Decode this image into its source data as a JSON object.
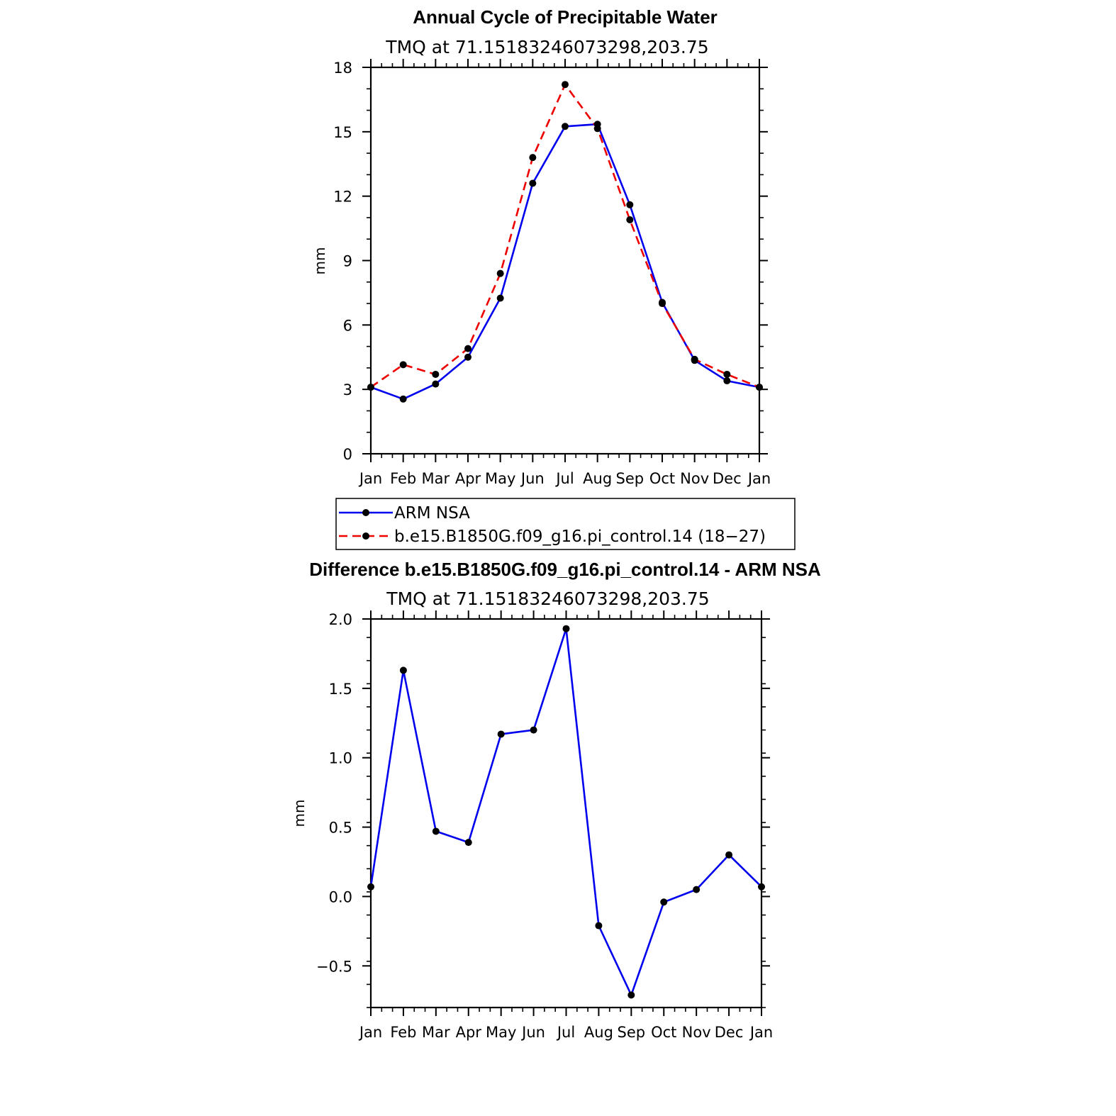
{
  "chart_data": [
    {
      "type": "line",
      "title": "Annual Cycle of Precipitable Water",
      "subtitle": "TMQ  at  71.15183246073298,203.75",
      "xlabel": "",
      "ylabel": "mm",
      "categories": [
        "Jan",
        "Feb",
        "Mar",
        "Apr",
        "May",
        "Jun",
        "Jul",
        "Aug",
        "Sep",
        "Oct",
        "Nov",
        "Dec",
        "Jan"
      ],
      "ylim": [
        0,
        18
      ],
      "yticks": [
        0,
        3,
        6,
        9,
        12,
        15,
        18
      ],
      "ytick_labels": [
        "0",
        "3",
        "6",
        "9",
        "12",
        "15",
        "18"
      ],
      "series": [
        {
          "name": "ARM  NSA",
          "color": "#0000ee",
          "dash": "solid",
          "values": [
            3.1,
            2.55,
            3.25,
            4.5,
            7.25,
            12.6,
            15.25,
            15.35,
            11.6,
            7.05,
            4.35,
            3.4,
            3.1
          ]
        },
        {
          "name": "b.e15.B1850G.f09_g16.pi_control.14  (18−27)",
          "color": "#ee0000",
          "dash": "dashed",
          "values": [
            3.1,
            4.15,
            3.7,
            4.9,
            8.4,
            13.8,
            17.2,
            15.15,
            10.9,
            7.0,
            4.4,
            3.7,
            3.1
          ]
        }
      ],
      "legend": "below"
    },
    {
      "type": "line",
      "title": "Difference b.e15.B1850G.f09_g16.pi_control.14 - ARM NSA",
      "subtitle": "TMQ  at  71.15183246073298,203.75",
      "xlabel": "",
      "ylabel": "mm",
      "categories": [
        "Jan",
        "Feb",
        "Mar",
        "Apr",
        "May",
        "Jun",
        "Jul",
        "Aug",
        "Sep",
        "Oct",
        "Nov",
        "Dec",
        "Jan"
      ],
      "ylim": [
        -0.8,
        2.0
      ],
      "yticks": [
        -0.5,
        0.0,
        0.5,
        1.0,
        1.5,
        2.0
      ],
      "ytick_labels": [
        "−0.5",
        "0.0",
        "0.5",
        "1.0",
        "1.5",
        "2.0"
      ],
      "series": [
        {
          "name": "Difference",
          "color": "#0000ee",
          "dash": "solid",
          "values": [
            0.07,
            1.63,
            0.47,
            0.39,
            1.17,
            1.2,
            1.93,
            -0.21,
            -0.71,
            -0.04,
            0.05,
            0.3,
            0.07
          ]
        }
      ]
    }
  ]
}
